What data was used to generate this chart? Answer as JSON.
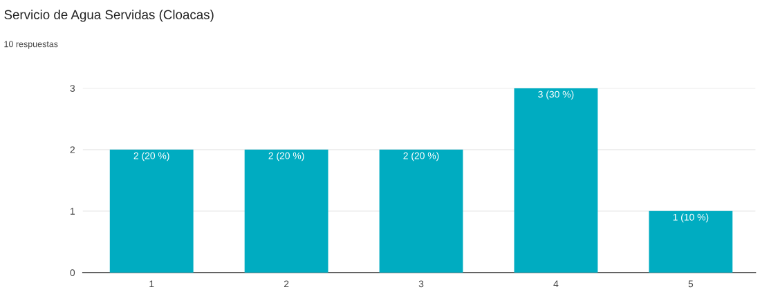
{
  "chart_data": {
    "type": "bar",
    "title": "Servicio de Agua Servidas (Cloacas)",
    "subtitle": "10 respuestas",
    "categories": [
      "1",
      "2",
      "3",
      "4",
      "5"
    ],
    "values": [
      2,
      2,
      2,
      3,
      1
    ],
    "value_labels": [
      "2 (20 %)",
      "2 (20 %)",
      "2 (20 %)",
      "3 (30 %)",
      "1 (10 %)"
    ],
    "color": "#00acc1",
    "ylim": [
      0,
      3
    ],
    "yticks": [
      0,
      1,
      2,
      3
    ],
    "grid": "y",
    "legend": false
  }
}
